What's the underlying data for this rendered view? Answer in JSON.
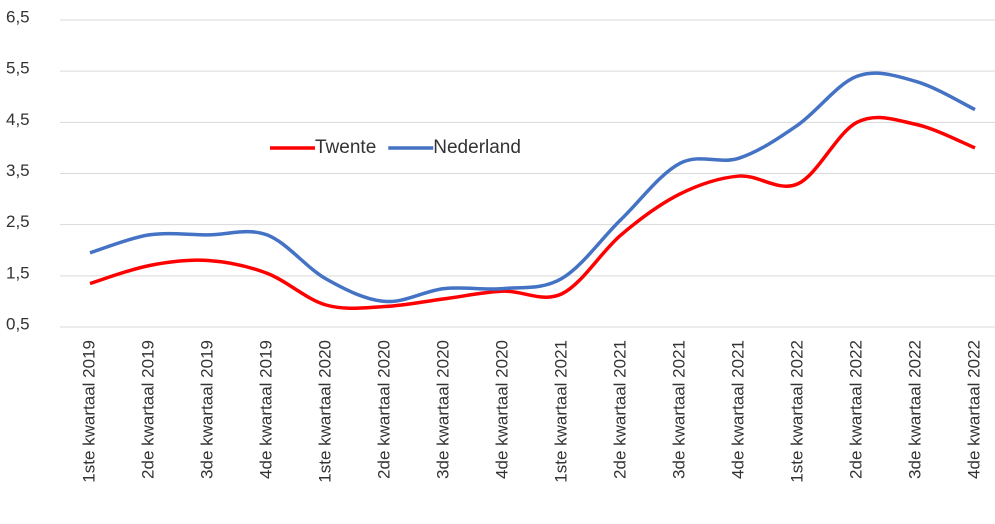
{
  "chart_data": {
    "type": "line",
    "categories": [
      "1ste kwartaal 2019",
      "2de kwartaal 2019",
      "3de kwartaal 2019",
      "4de kwartaal 2019",
      "1ste kwartaal 2020",
      "2de kwartaal 2020",
      "3de kwartaal 2020",
      "4de kwartaal 2020",
      "1ste kwartaal 2021",
      "2de kwartaal 2021",
      "3de kwartaal 2021",
      "4de kwartaal 2021",
      "1ste kwartaal 2022",
      "2de kwartaal 2022",
      "3de kwartaal 2022",
      "4de kwartaal 2022"
    ],
    "series": [
      {
        "name": "Twente",
        "color": "#ff0000",
        "values": [
          1.35,
          1.7,
          1.8,
          1.55,
          0.93,
          0.9,
          1.05,
          1.2,
          1.15,
          2.3,
          3.1,
          3.45,
          3.3,
          4.5,
          4.46,
          4.0
        ]
      },
      {
        "name": "Nederland",
        "color": "#4472c4",
        "values": [
          1.95,
          2.3,
          2.3,
          2.3,
          1.44,
          1.0,
          1.25,
          1.25,
          1.45,
          2.6,
          3.7,
          3.8,
          4.45,
          5.4,
          5.3,
          4.75
        ]
      }
    ],
    "ylim": [
      0.5,
      6.5
    ],
    "yticks": [
      {
        "value": 0.5,
        "label": "0,5"
      },
      {
        "value": 1.5,
        "label": "1,5"
      },
      {
        "value": 2.5,
        "label": "2,5"
      },
      {
        "value": 3.5,
        "label": "3,5"
      },
      {
        "value": 4.5,
        "label": "4,5"
      },
      {
        "value": 5.5,
        "label": "5,5"
      },
      {
        "value": 6.5,
        "label": "6,5"
      }
    ],
    "grid": true
  }
}
